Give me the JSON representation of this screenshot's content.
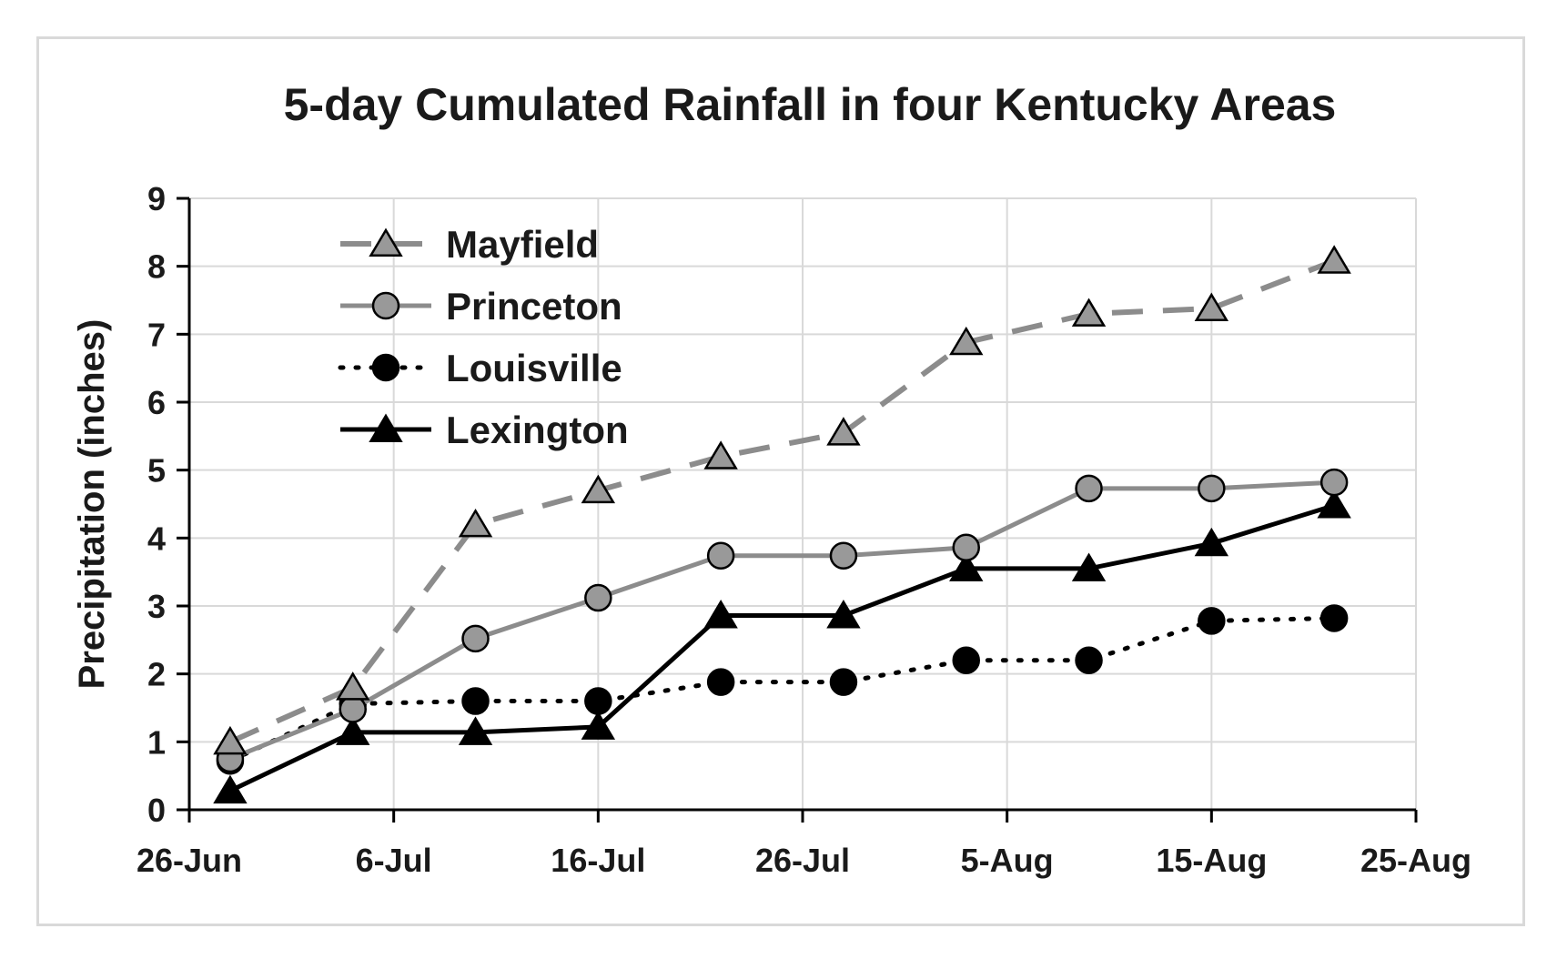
{
  "chart_data": {
    "type": "line",
    "title": "5-day Cumulated Rainfall in four Kentucky Areas",
    "xlabel": "",
    "ylabel": "Precipitation (inches)",
    "x": [
      "2019-06-29",
      "2019-07-04",
      "2019-07-09",
      "2019-07-14",
      "2019-07-19",
      "2019-07-24",
      "2019-07-29",
      "2019-08-03",
      "2019-08-08",
      "2019-08-13",
      "2019-08-18",
      "2019-08-23"
    ],
    "x_tick_labels": [
      "26-Jun",
      "6-Jul",
      "16-Jul",
      "26-Jul",
      "5-Aug",
      "15-Aug",
      "25-Aug"
    ],
    "x_ticks": [
      "2019-06-26",
      "2019-07-06",
      "2019-07-16",
      "2019-07-26",
      "2019-08-05",
      "2019-08-15",
      "2019-08-25"
    ],
    "xlim": [
      "2019-06-26",
      "2019-08-25"
    ],
    "ylim": [
      0,
      9
    ],
    "y_ticks": [
      0,
      1,
      2,
      3,
      4,
      5,
      6,
      7,
      8,
      9
    ],
    "grid": true,
    "legend_position": "top-left",
    "series": [
      {
        "name": "Mayfield",
        "x": [
          "2019-06-28",
          "2019-07-04",
          "2019-07-10",
          "2019-07-16",
          "2019-07-22",
          "2019-07-28",
          "2019-08-03",
          "2019-08-09",
          "2019-08-15",
          "2019-08-21"
        ],
        "values": [
          1.0,
          1.8,
          4.2,
          4.7,
          5.2,
          5.55,
          6.88,
          7.3,
          7.38,
          8.08
        ],
        "color": "#8c8c8c",
        "marker": "triangle",
        "marker_fill": "#999999",
        "line_style": "dashed"
      },
      {
        "name": "Princeton",
        "x": [
          "2019-06-28",
          "2019-07-04",
          "2019-07-10",
          "2019-07-16",
          "2019-07-22",
          "2019-07-28",
          "2019-08-03",
          "2019-08-09",
          "2019-08-15",
          "2019-08-21"
        ],
        "values": [
          0.75,
          1.48,
          2.52,
          3.12,
          3.74,
          3.74,
          3.86,
          4.73,
          4.73,
          4.82
        ],
        "color": "#8c8c8c",
        "marker": "circle",
        "marker_fill": "#999999",
        "line_style": "solid"
      },
      {
        "name": "Louisville",
        "x": [
          "2019-06-28",
          "2019-07-04",
          "2019-07-10",
          "2019-07-16",
          "2019-07-22",
          "2019-07-28",
          "2019-08-03",
          "2019-08-09",
          "2019-08-15",
          "2019-08-21"
        ],
        "values": [
          0.72,
          1.56,
          1.6,
          1.6,
          1.88,
          1.88,
          2.2,
          2.2,
          2.78,
          2.82
        ],
        "color": "#000000",
        "marker": "circle",
        "marker_fill": "#000000",
        "line_style": "dotted"
      },
      {
        "name": "Lexington",
        "x": [
          "2019-06-28",
          "2019-07-04",
          "2019-07-10",
          "2019-07-16",
          "2019-07-22",
          "2019-07-28",
          "2019-08-03",
          "2019-08-09",
          "2019-08-15",
          "2019-08-21"
        ],
        "values": [
          0.28,
          1.14,
          1.14,
          1.22,
          2.86,
          2.86,
          3.55,
          3.55,
          3.92,
          4.48
        ],
        "color": "#000000",
        "marker": "triangle",
        "marker_fill": "#000000",
        "line_style": "solid"
      }
    ]
  }
}
